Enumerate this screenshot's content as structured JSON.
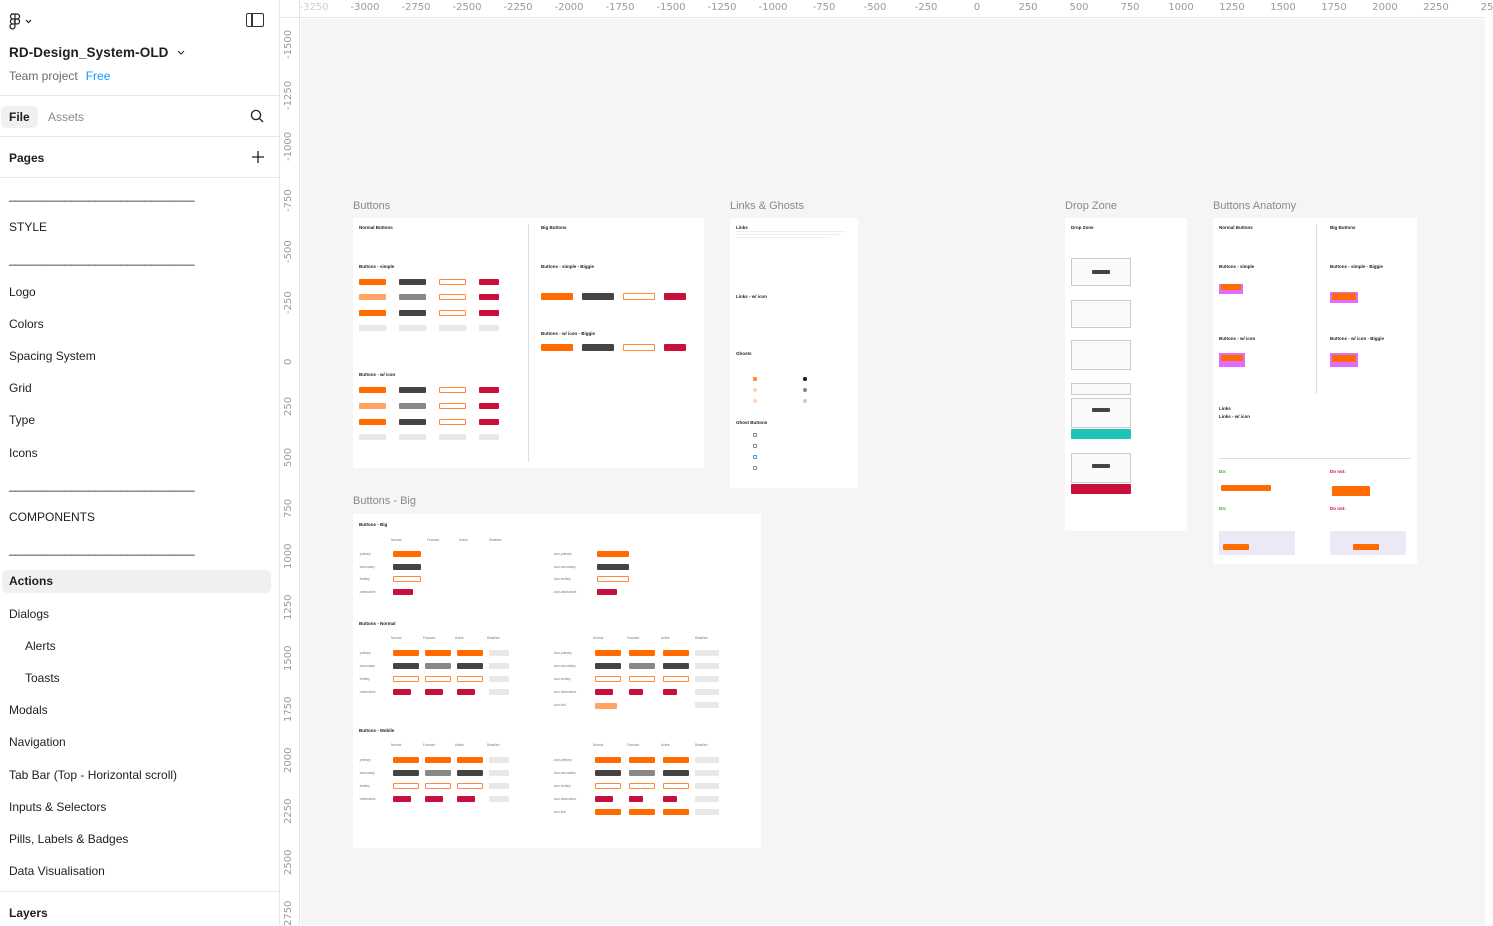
{
  "file": {
    "title": "RD-Design_System-OLD",
    "team": "Team project",
    "plan": "Free"
  },
  "sidebar_tabs": {
    "file": "File",
    "assets": "Assets"
  },
  "pages_title": "Pages",
  "pages": [
    {
      "label": "______________________________",
      "type": "divider"
    },
    {
      "label": "STYLE",
      "type": "page"
    },
    {
      "label": "______________________________",
      "type": "divider"
    },
    {
      "label": "Logo",
      "type": "page"
    },
    {
      "label": "Colors",
      "type": "page"
    },
    {
      "label": "Spacing System",
      "type": "page"
    },
    {
      "label": "Grid",
      "type": "page"
    },
    {
      "label": "Type",
      "type": "page"
    },
    {
      "label": "Icons",
      "type": "page"
    },
    {
      "label": "______________________________",
      "type": "divider"
    },
    {
      "label": "COMPONENTS",
      "type": "page"
    },
    {
      "label": "______________________________",
      "type": "divider"
    },
    {
      "label": "Actions",
      "type": "page",
      "selected": true
    },
    {
      "label": "Dialogs",
      "type": "page"
    },
    {
      "label": "Alerts",
      "type": "page",
      "indent": true
    },
    {
      "label": "Toasts",
      "type": "page",
      "indent": true
    },
    {
      "label": "Modals",
      "type": "page"
    },
    {
      "label": "Navigation",
      "type": "page"
    },
    {
      "label": "Tab Bar (Top - Horizontal scroll)",
      "type": "page"
    },
    {
      "label": "Inputs & Selectors",
      "type": "page"
    },
    {
      "label": "Pills, Labels & Badges",
      "type": "page"
    },
    {
      "label": "Data Visualisation",
      "type": "page"
    }
  ],
  "layers_title": "Layers",
  "ruler_top": [
    "-3250",
    "-3000",
    "-2750",
    "-2500",
    "-2250",
    "-2000",
    "-1750",
    "-1500",
    "-1250",
    "-1000",
    "-750",
    "-500",
    "-250",
    "0",
    "250",
    "500",
    "750",
    "1000",
    "1250",
    "1500",
    "1750",
    "2000",
    "2250",
    "25"
  ],
  "ruler_left": [
    "-1500",
    "-1250",
    "-1000",
    "-750",
    "-500",
    "-250",
    "0",
    "250",
    "500",
    "750",
    "1000",
    "1250",
    "1500",
    "1750",
    "2000",
    "2250",
    "2500",
    "2750"
  ],
  "frames": {
    "buttons": "Buttons",
    "links_ghosts": "Links & Ghosts",
    "drop_zone": "Drop Zone",
    "buttons_anatomy": "Buttons Anatomy",
    "buttons_big": "Buttons - Big"
  },
  "frame_text": {
    "normal_buttons": "Normal Buttons",
    "big_buttons": "Big Buttons",
    "buttons_simple": "Buttons - simple",
    "buttons_simple_biggie": "Buttons - simple - Biggie",
    "buttons_w_icon": "Buttons - w/ icon",
    "buttons_w_icon_biggie": "Buttons - w/ icon - Biggie",
    "links": "Links",
    "links_w_icon": "Links - w/ icon",
    "ghosts": "Ghosts",
    "ghost_buttons": "Ghost Buttons",
    "drop_zone_title": "Drop Zone",
    "big_section_big": "Buttons - Big",
    "big_section_normal": "Buttons - Normal",
    "big_section_mobile": "Buttons - Mobile",
    "col_normal": "Normal",
    "col_focused": "Focused",
    "col_active": "Active",
    "col_disabled": "Disabled",
    "row_primary": "-primary",
    "row_secondary": "-secondary",
    "row_tertiary": "-tertiary",
    "row_destructive": "-destructive",
    "row_icon_primary": "-icon-primary",
    "row_icon_secondary": "-icon-secondary",
    "row_icon_tertiary": "-icon-tertiary",
    "row_icon_destructive": "-icon-destructive",
    "row_icon_link": "-icon-link",
    "do": "Do:",
    "do_not": "Do not:"
  },
  "colors": {
    "primary": "#ff6b00",
    "secondary": "#444444",
    "destructive": "#c8103d",
    "accent_teal": "#1bc4b6",
    "plan_link": "#0d99ff",
    "selection": "#f0f0f0"
  }
}
